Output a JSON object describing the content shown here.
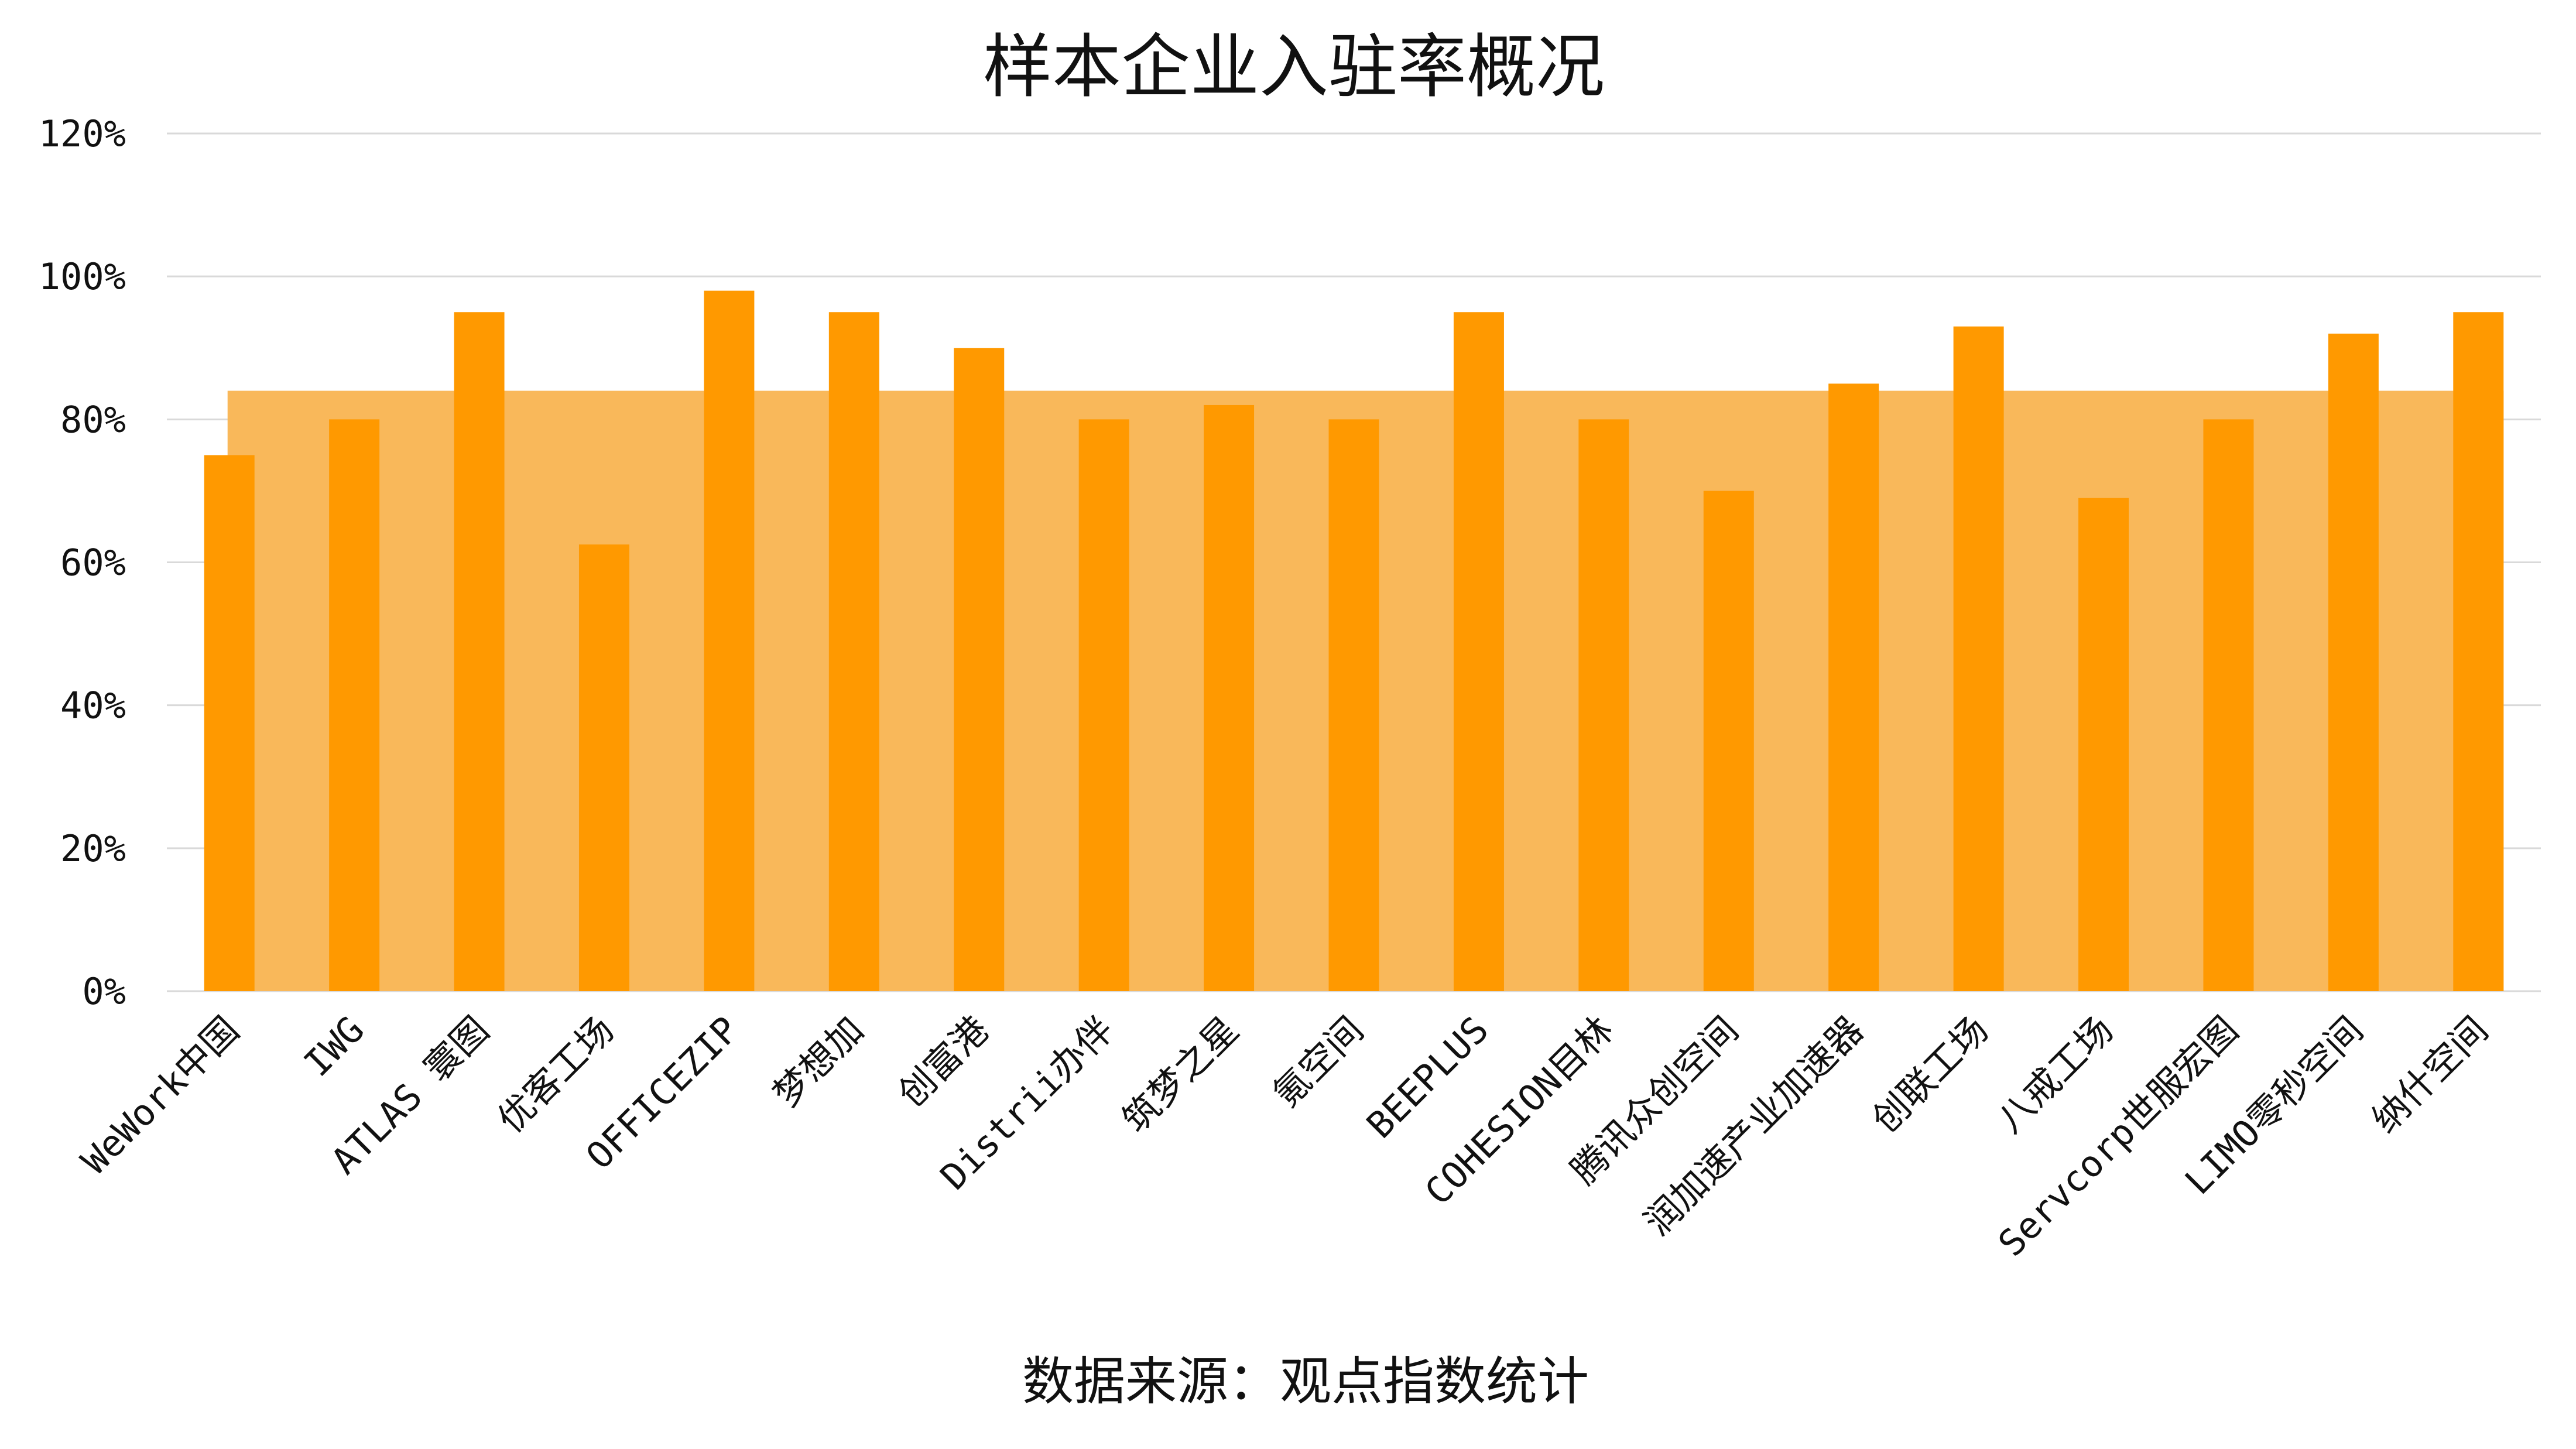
{
  "chart_data": {
    "type": "bar",
    "title": "样本企业入驻率概况",
    "source_note": "数据来源：观点指数统计",
    "categories": [
      "WeWork中国",
      "IWG",
      "ATLAS 寰图",
      "优客工场",
      "OFFICEZIP",
      "梦想加",
      "创富港",
      "Distrii办伴",
      "筑梦之星",
      "氪空间",
      "BEEPLUS",
      "COHESION目林",
      "腾讯众创空间",
      "润加速产业加速器",
      "创联工场",
      "八戒工场",
      "Servcorp世服宏图",
      "LIMO零秒空间",
      "纳什空间"
    ],
    "series": [
      {
        "values": [
          75,
          80,
          95,
          62.5,
          98,
          95,
          90,
          80,
          82,
          80,
          95,
          80,
          70,
          85,
          93,
          69,
          80,
          92,
          95
        ]
      }
    ],
    "average_band": 84,
    "ylim": [
      0,
      120
    ],
    "yticks": [
      "0%",
      "20%",
      "40%",
      "60%",
      "80%",
      "100%",
      "120%"
    ],
    "ytick_values": [
      0,
      20,
      40,
      60,
      80,
      100,
      120
    ],
    "grid": true,
    "legend": "none",
    "colors": {
      "bar": "#FF9900",
      "band": "#F9B85A",
      "grid": "#D9D9D9"
    }
  }
}
